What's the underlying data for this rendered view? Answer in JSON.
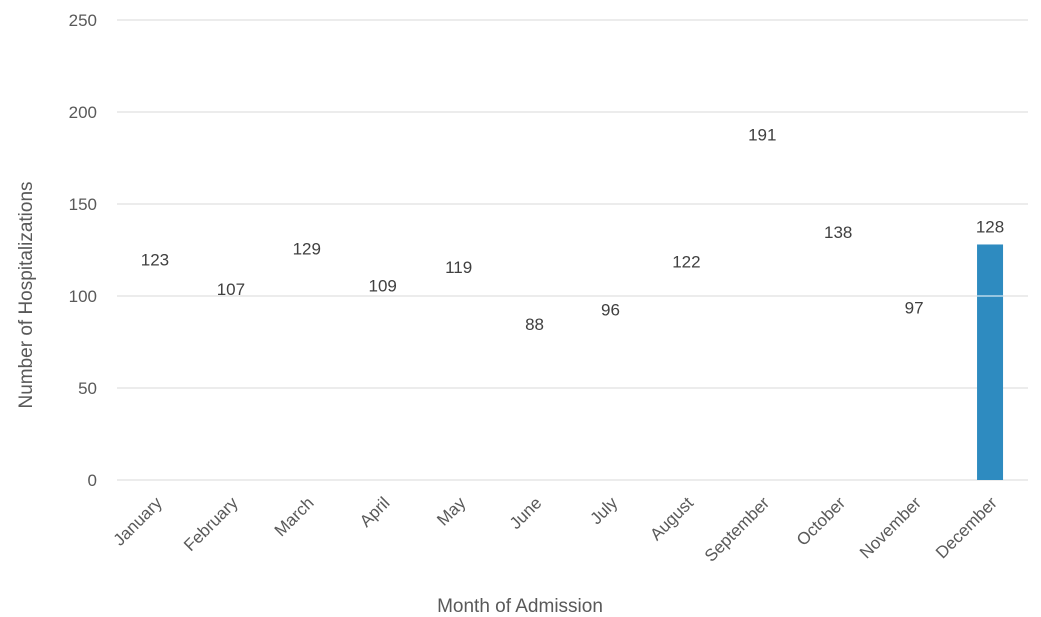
{
  "chart_data": {
    "type": "bar",
    "title": "",
    "xlabel": "Month of Admission",
    "ylabel": "Number of Hospitalizations",
    "ylim": [
      0,
      250
    ],
    "yticks": [
      0,
      50,
      100,
      150,
      200,
      250
    ],
    "grid": true,
    "legend": "none",
    "bar_color": "#2E8BC0",
    "categories": [
      "January",
      "February",
      "March",
      "April",
      "May",
      "June",
      "July",
      "August",
      "September",
      "October",
      "November",
      "December"
    ],
    "values": [
      123,
      107,
      129,
      109,
      119,
      88,
      96,
      122,
      191,
      138,
      97,
      128
    ],
    "label_colors": {
      "tick": "#595959",
      "data_label": "#404040",
      "grid": "#d9d9d9"
    }
  }
}
